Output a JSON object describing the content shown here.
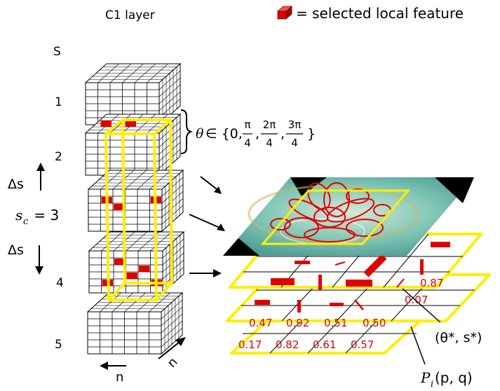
{
  "header": {
    "layer_title": "C1 layer",
    "legend_text": "= selected local feature"
  },
  "scale_axis": {
    "title": "S",
    "levels": [
      "1",
      "2",
      "3",
      "4",
      "5"
    ],
    "sc_symbol": "s",
    "sc_subscript": "c",
    "sc_eq": " = 3",
    "delta_s": "Δs"
  },
  "orientation_set": {
    "theta": "θ",
    "prefix": "∈ {0,",
    "fracs": [
      {
        "num": "π",
        "den": "4"
      },
      {
        "num": "2π",
        "den": "4"
      },
      {
        "num": "3π",
        "den": "4"
      }
    ],
    "close": "}"
  },
  "cube_axis": {
    "label": "n"
  },
  "prob_grid": {
    "values": [
      [
        "0.87"
      ],
      [
        "0.07"
      ],
      [
        "0.47",
        "0.92",
        "0.51",
        "0.50"
      ],
      [
        "0.17",
        "0.82",
        "0.61",
        "0.57"
      ]
    ]
  },
  "annotations": {
    "theta_star": "(θ*, s*)",
    "pi_main": "P",
    "pi_sub": "i",
    "pi_args": "(p, q)"
  },
  "colors": {
    "highlight": "#ffee00",
    "feature": "#e00000",
    "image_bg": "#7fc9b8"
  }
}
